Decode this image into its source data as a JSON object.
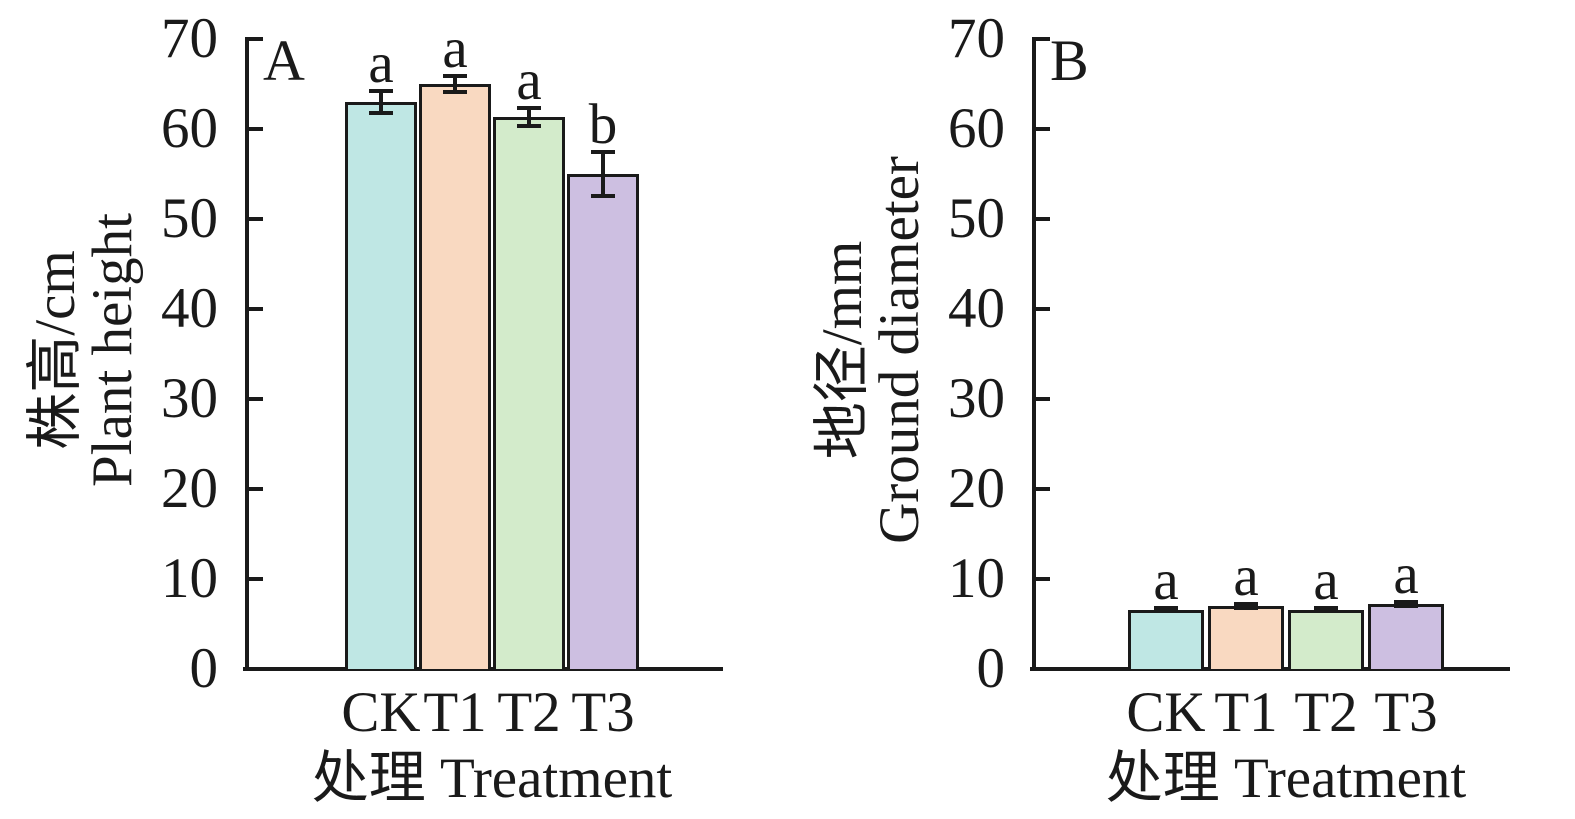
{
  "figure": {
    "background": "#ffffff",
    "axis_color": "#1a1a1a",
    "panel_count": 2
  },
  "chart_data": [
    {
      "type": "bar",
      "panel_label": "A",
      "ylabel_lines": [
        "株高/cm",
        "Plant height"
      ],
      "xlabel": "处理 Treatment",
      "categories": [
        "CK",
        "T1",
        "T2",
        "T3"
      ],
      "values": [
        63,
        65,
        61.3,
        55
      ],
      "errors": [
        1.2,
        0.9,
        1.0,
        2.4
      ],
      "sig_letters": [
        "a",
        "a",
        "a",
        "b"
      ],
      "bar_colors": [
        "#bfe7e4",
        "#f9d9c1",
        "#d3ebcb",
        "#cdbfe1"
      ],
      "ylim": [
        0,
        70
      ],
      "yticks": [
        0,
        10,
        20,
        30,
        40,
        50,
        60,
        70
      ],
      "grid": false,
      "legend": "none"
    },
    {
      "type": "bar",
      "panel_label": "B",
      "ylabel_lines": [
        "地径/mm",
        "Ground diameter"
      ],
      "xlabel": "处理 Treatment",
      "categories": [
        "CK",
        "T1",
        "T2",
        "T3"
      ],
      "values": [
        6.6,
        7.0,
        6.6,
        7.2
      ],
      "errors": [
        0.2,
        0.25,
        0.15,
        0.25
      ],
      "sig_letters": [
        "a",
        "a",
        "a",
        "a"
      ],
      "bar_colors": [
        "#bfe7e4",
        "#f9d9c1",
        "#d3ebcb",
        "#cdbfe1"
      ],
      "ylim": [
        0,
        70
      ],
      "yticks": [
        0,
        10,
        20,
        30,
        40,
        50,
        60,
        70
      ],
      "grid": false,
      "legend": "none"
    }
  ]
}
